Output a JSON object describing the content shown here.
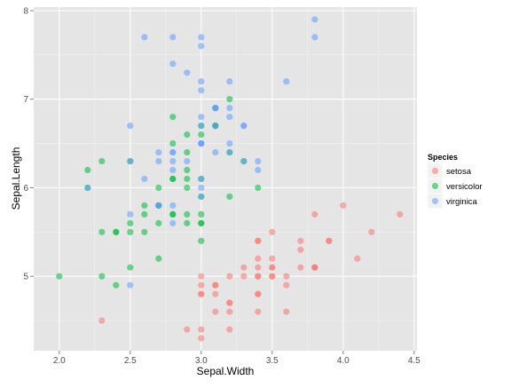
{
  "chart_data": {
    "type": "scatter",
    "title": "",
    "xlabel": "Sepal.Width",
    "ylabel": "Sepal.Length",
    "xlim": [
      1.82,
      4.52
    ],
    "ylim": [
      4.16,
      8.04
    ],
    "xticks": [
      "2.0",
      "2.5",
      "3.0",
      "3.5",
      "4.0",
      "4.5"
    ],
    "xtick_values": [
      2.0,
      2.5,
      3.0,
      3.5,
      4.0,
      4.5
    ],
    "yticks": [
      "5",
      "6",
      "7",
      "8"
    ],
    "ytick_values": [
      5,
      6,
      7,
      8
    ],
    "grid": true,
    "legend": {
      "title": "Species",
      "position": "right"
    },
    "series": [
      {
        "name": "setosa",
        "color": "#F8766D",
        "points": [
          [
            3.5,
            5.1
          ],
          [
            3.0,
            4.9
          ],
          [
            3.2,
            4.7
          ],
          [
            3.1,
            4.6
          ],
          [
            3.6,
            5.0
          ],
          [
            3.9,
            5.4
          ],
          [
            3.4,
            4.6
          ],
          [
            3.4,
            5.0
          ],
          [
            2.9,
            4.4
          ],
          [
            3.1,
            4.9
          ],
          [
            3.7,
            5.4
          ],
          [
            3.4,
            4.8
          ],
          [
            3.0,
            4.8
          ],
          [
            3.0,
            4.3
          ],
          [
            4.0,
            5.8
          ],
          [
            4.4,
            5.7
          ],
          [
            3.9,
            5.4
          ],
          [
            3.5,
            5.1
          ],
          [
            3.8,
            5.7
          ],
          [
            3.8,
            5.1
          ],
          [
            3.4,
            5.4
          ],
          [
            3.7,
            5.1
          ],
          [
            3.6,
            4.6
          ],
          [
            3.3,
            5.1
          ],
          [
            3.4,
            4.8
          ],
          [
            3.0,
            5.0
          ],
          [
            3.4,
            5.0
          ],
          [
            3.5,
            5.2
          ],
          [
            3.4,
            5.2
          ],
          [
            3.2,
            4.7
          ],
          [
            3.1,
            4.8
          ],
          [
            3.4,
            5.4
          ],
          [
            4.1,
            5.2
          ],
          [
            4.2,
            5.5
          ],
          [
            3.1,
            4.9
          ],
          [
            3.2,
            5.0
          ],
          [
            3.5,
            5.5
          ],
          [
            3.6,
            4.9
          ],
          [
            3.0,
            4.4
          ],
          [
            3.4,
            5.1
          ],
          [
            3.5,
            5.0
          ],
          [
            2.3,
            4.5
          ],
          [
            3.2,
            4.4
          ],
          [
            3.5,
            5.0
          ],
          [
            3.8,
            5.1
          ],
          [
            3.0,
            4.8
          ],
          [
            3.8,
            5.1
          ],
          [
            3.2,
            4.6
          ],
          [
            3.7,
            5.3
          ],
          [
            3.3,
            5.0
          ]
        ]
      },
      {
        "name": "versicolor",
        "color": "#00BA38",
        "points": [
          [
            3.2,
            7.0
          ],
          [
            3.2,
            6.4
          ],
          [
            3.1,
            6.9
          ],
          [
            2.3,
            5.5
          ],
          [
            2.8,
            6.5
          ],
          [
            2.8,
            5.7
          ],
          [
            3.3,
            6.3
          ],
          [
            2.4,
            4.9
          ],
          [
            2.9,
            6.6
          ],
          [
            2.7,
            5.2
          ],
          [
            2.0,
            5.0
          ],
          [
            3.0,
            5.9
          ],
          [
            2.2,
            6.0
          ],
          [
            2.9,
            6.1
          ],
          [
            2.9,
            5.6
          ],
          [
            3.1,
            6.7
          ],
          [
            3.0,
            5.6
          ],
          [
            2.7,
            5.8
          ],
          [
            2.2,
            6.2
          ],
          [
            2.5,
            5.6
          ],
          [
            3.2,
            5.9
          ],
          [
            2.8,
            6.1
          ],
          [
            2.5,
            6.3
          ],
          [
            2.8,
            6.1
          ],
          [
            2.9,
            6.4
          ],
          [
            3.0,
            6.6
          ],
          [
            2.8,
            6.8
          ],
          [
            3.0,
            6.7
          ],
          [
            2.9,
            6.0
          ],
          [
            2.6,
            5.7
          ],
          [
            2.4,
            5.5
          ],
          [
            2.4,
            5.5
          ],
          [
            2.7,
            5.8
          ],
          [
            2.7,
            6.0
          ],
          [
            3.0,
            5.4
          ],
          [
            3.4,
            6.0
          ],
          [
            3.1,
            6.7
          ],
          [
            2.3,
            6.3
          ],
          [
            3.0,
            5.6
          ],
          [
            2.5,
            5.5
          ],
          [
            2.6,
            5.5
          ],
          [
            3.0,
            6.1
          ],
          [
            2.6,
            5.8
          ],
          [
            2.3,
            5.0
          ],
          [
            2.7,
            5.6
          ],
          [
            3.0,
            5.7
          ],
          [
            2.9,
            5.7
          ],
          [
            2.9,
            6.2
          ],
          [
            2.5,
            5.1
          ],
          [
            2.8,
            5.7
          ]
        ]
      },
      {
        "name": "virginica",
        "color": "#619CFF",
        "points": [
          [
            3.3,
            6.3
          ],
          [
            2.7,
            5.8
          ],
          [
            3.0,
            7.1
          ],
          [
            2.9,
            6.3
          ],
          [
            3.0,
            6.5
          ],
          [
            3.0,
            7.6
          ],
          [
            2.5,
            4.9
          ],
          [
            2.9,
            7.3
          ],
          [
            2.5,
            6.7
          ],
          [
            3.6,
            7.2
          ],
          [
            3.2,
            6.5
          ],
          [
            2.7,
            6.4
          ],
          [
            3.0,
            6.8
          ],
          [
            2.5,
            5.7
          ],
          [
            2.8,
            5.8
          ],
          [
            3.2,
            6.4
          ],
          [
            3.0,
            6.5
          ],
          [
            3.8,
            7.7
          ],
          [
            2.6,
            7.7
          ],
          [
            2.2,
            6.0
          ],
          [
            3.2,
            6.9
          ],
          [
            2.8,
            5.6
          ],
          [
            2.8,
            7.7
          ],
          [
            2.7,
            6.3
          ],
          [
            3.3,
            6.7
          ],
          [
            3.2,
            7.2
          ],
          [
            2.8,
            6.2
          ],
          [
            3.0,
            6.1
          ],
          [
            2.8,
            6.4
          ],
          [
            3.0,
            7.2
          ],
          [
            2.8,
            7.4
          ],
          [
            3.8,
            7.9
          ],
          [
            2.8,
            6.4
          ],
          [
            2.8,
            6.3
          ],
          [
            2.6,
            6.1
          ],
          [
            3.0,
            7.7
          ],
          [
            3.4,
            6.3
          ],
          [
            3.1,
            6.4
          ],
          [
            3.0,
            6.0
          ],
          [
            3.1,
            6.9
          ],
          [
            3.1,
            6.7
          ],
          [
            3.1,
            6.9
          ],
          [
            2.7,
            5.8
          ],
          [
            3.2,
            6.8
          ],
          [
            3.3,
            6.7
          ],
          [
            3.0,
            6.7
          ],
          [
            2.5,
            6.3
          ],
          [
            3.0,
            6.5
          ],
          [
            3.4,
            6.2
          ],
          [
            3.0,
            5.9
          ]
        ]
      }
    ]
  }
}
